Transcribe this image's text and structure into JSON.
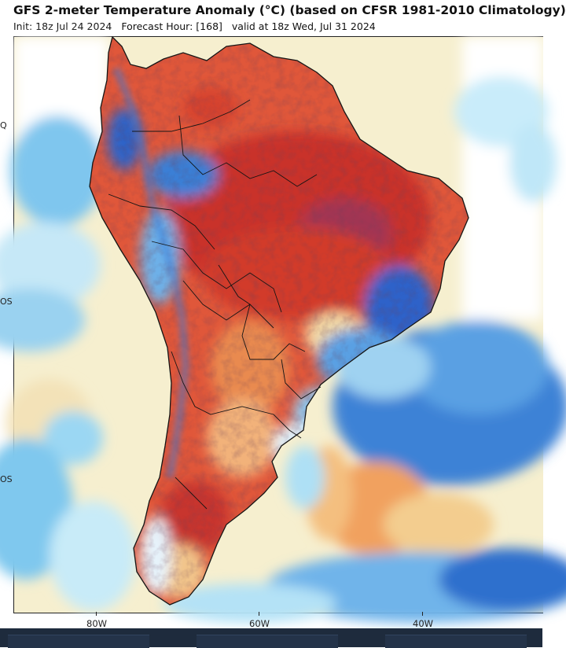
{
  "header": {
    "title": "GFS 2-meter Temperature Anomaly (°C) (based on CFSR 1981-2010 Climatology)",
    "init": "Init: 18z Jul 24 2024",
    "forecast_hour": "Forecast Hour: [168]",
    "valid": "valid at 18z Wed, Jul 31 2024"
  },
  "axes": {
    "lat_labels": [
      "Q",
      "OS",
      "OS"
    ],
    "lon_labels": [
      "80W",
      "60W",
      "40W"
    ]
  },
  "colors": {
    "ocean_warm": "#f6efcf",
    "ocean_cool": "#9fd3ef",
    "cold_strong": "#1f63c9",
    "cold_mild": "#61a6e6",
    "warm_mild": "#f2a15c",
    "warm_strong": "#d9402b",
    "hot": "#b5202c",
    "very_hot": "#9a3b6e",
    "coast": "#151515"
  }
}
